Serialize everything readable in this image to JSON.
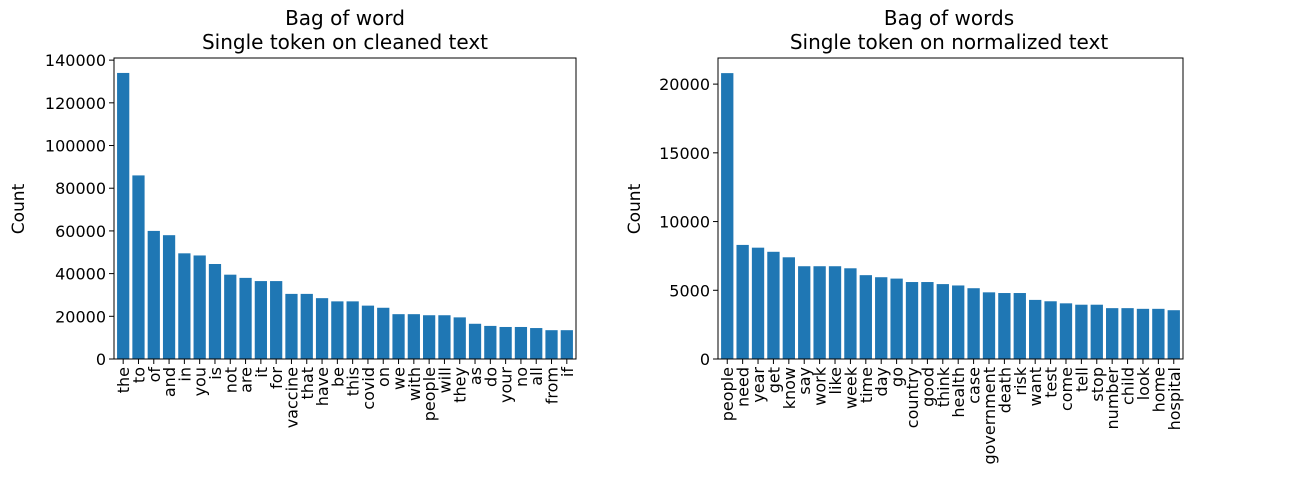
{
  "chart_data": [
    {
      "type": "bar",
      "title": [
        "Bag of word",
        "Single token on cleaned text"
      ],
      "xlabel": "",
      "ylabel": "Count",
      "ylim": [
        0,
        141000
      ],
      "yticks": [
        0,
        20000,
        40000,
        60000,
        80000,
        100000,
        120000,
        140000
      ],
      "ytick_labels": [
        "0",
        "20000",
        "40000",
        "60000",
        "80000",
        "100000",
        "120000",
        "140000"
      ],
      "color": "#1f77b4",
      "categories": [
        "the",
        "to",
        "of",
        "and",
        "in",
        "you",
        "is",
        "not",
        "are",
        "it",
        "for",
        "vaccine",
        "that",
        "have",
        "be",
        "this",
        "covid",
        "on",
        "we",
        "with",
        "people",
        "will",
        "they",
        "as",
        "do",
        "your",
        "no",
        "all",
        "from",
        "if"
      ],
      "values": [
        134000,
        86000,
        60000,
        58000,
        49500,
        48500,
        44500,
        39500,
        38000,
        36500,
        36500,
        30500,
        30500,
        28500,
        27000,
        27000,
        25000,
        24000,
        21000,
        21000,
        20500,
        20500,
        19500,
        16500,
        15500,
        15000,
        15000,
        14500,
        13500,
        13500
      ]
    },
    {
      "type": "bar",
      "title": [
        "Bag of words",
        "Single token on normalized text"
      ],
      "xlabel": "",
      "ylabel": "Count",
      "ylim": [
        0,
        21900
      ],
      "yticks": [
        0,
        5000,
        10000,
        15000,
        20000
      ],
      "ytick_labels": [
        "0",
        "5000",
        "10000",
        "15000",
        "20000"
      ],
      "color": "#1f77b4",
      "categories": [
        "people",
        "need",
        "year",
        "get",
        "know",
        "say",
        "work",
        "like",
        "week",
        "time",
        "day",
        "go",
        "country",
        "good",
        "think",
        "health",
        "case",
        "government",
        "death",
        "risk",
        "want",
        "test",
        "come",
        "tell",
        "stop",
        "number",
        "child",
        "look",
        "home",
        "hospital"
      ],
      "values": [
        20800,
        8300,
        8100,
        7800,
        7400,
        6750,
        6750,
        6750,
        6600,
        6100,
        5950,
        5850,
        5600,
        5600,
        5450,
        5350,
        5150,
        4850,
        4800,
        4800,
        4300,
        4200,
        4050,
        3950,
        3950,
        3700,
        3700,
        3650,
        3650,
        3550
      ]
    }
  ]
}
